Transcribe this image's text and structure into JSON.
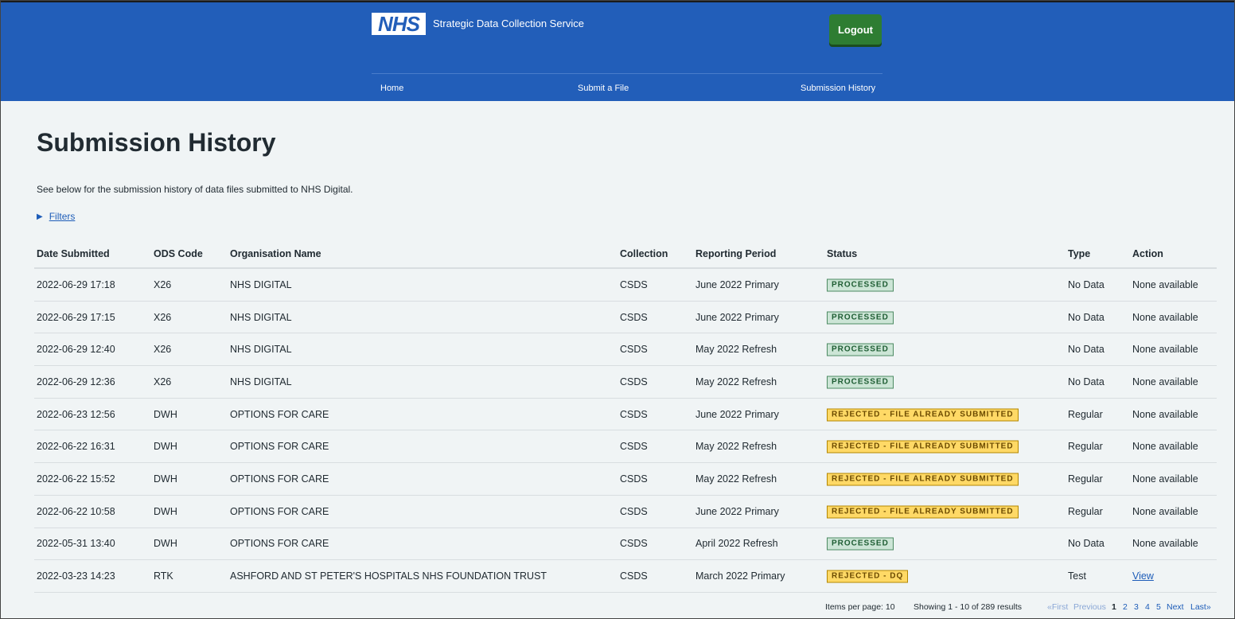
{
  "header": {
    "logo_text": "NHS",
    "service_name": "Strategic Data Collection Service",
    "logout_label": "Logout",
    "nav": [
      {
        "label": "Home"
      },
      {
        "label": "Submit a File"
      },
      {
        "label": "Submission History"
      }
    ],
    "colors": {
      "header_bg": "#225eb9",
      "logout_bg": "#2e7d32"
    }
  },
  "main": {
    "title": "Submission History",
    "intro": "See below for the submission history of data files submitted to NHS Digital.",
    "filters_label": "Filters"
  },
  "table": {
    "columns": [
      "Date Submitted",
      "ODS Code",
      "Organisation Name",
      "Collection",
      "Reporting Period",
      "Status",
      "Type",
      "Action"
    ],
    "rows": [
      {
        "date": "2022-06-29 17:18",
        "ods": "X26",
        "org": "NHS DIGITAL",
        "collection": "CSDS",
        "period": "June 2022 Primary",
        "status": "PROCESSED",
        "type": "No Data",
        "action": "None available"
      },
      {
        "date": "2022-06-29 17:15",
        "ods": "X26",
        "org": "NHS DIGITAL",
        "collection": "CSDS",
        "period": "June 2022 Primary",
        "status": "PROCESSED",
        "type": "No Data",
        "action": "None available"
      },
      {
        "date": "2022-06-29 12:40",
        "ods": "X26",
        "org": "NHS DIGITAL",
        "collection": "CSDS",
        "period": "May 2022 Refresh",
        "status": "PROCESSED",
        "type": "No Data",
        "action": "None available"
      },
      {
        "date": "2022-06-29 12:36",
        "ods": "X26",
        "org": "NHS DIGITAL",
        "collection": "CSDS",
        "period": "May 2022 Refresh",
        "status": "PROCESSED",
        "type": "No Data",
        "action": "None available"
      },
      {
        "date": "2022-06-23 12:56",
        "ods": "DWH",
        "org": "OPTIONS FOR CARE",
        "collection": "CSDS",
        "period": "June 2022 Primary",
        "status": "REJECTED - FILE ALREADY SUBMITTED",
        "type": "Regular",
        "action": "None available"
      },
      {
        "date": "2022-06-22 16:31",
        "ods": "DWH",
        "org": "OPTIONS FOR CARE",
        "collection": "CSDS",
        "period": "May 2022 Refresh",
        "status": "REJECTED - FILE ALREADY SUBMITTED",
        "type": "Regular",
        "action": "None available"
      },
      {
        "date": "2022-06-22 15:52",
        "ods": "DWH",
        "org": "OPTIONS FOR CARE",
        "collection": "CSDS",
        "period": "May 2022 Refresh",
        "status": "REJECTED - FILE ALREADY SUBMITTED",
        "type": "Regular",
        "action": "None available"
      },
      {
        "date": "2022-06-22 10:58",
        "ods": "DWH",
        "org": "OPTIONS FOR CARE",
        "collection": "CSDS",
        "period": "June 2022 Primary",
        "status": "REJECTED - FILE ALREADY SUBMITTED",
        "type": "Regular",
        "action": "None available"
      },
      {
        "date": "2022-05-31 13:40",
        "ods": "DWH",
        "org": "OPTIONS FOR CARE",
        "collection": "CSDS",
        "period": "April 2022 Refresh",
        "status": "PROCESSED",
        "type": "No Data",
        "action": "None available"
      },
      {
        "date": "2022-03-23 14:23",
        "ods": "RTK",
        "org": "ASHFORD AND ST PETER'S HOSPITALS NHS FOUNDATION TRUST",
        "collection": "CSDS",
        "period": "March 2022 Primary",
        "status": "REJECTED - DQ",
        "type": "Test",
        "action": "View"
      }
    ]
  },
  "pagination": {
    "items_per_page": "Items per page: 10",
    "showing": "Showing 1 - 10 of 289 results",
    "first": "«First",
    "previous": "Previous",
    "pages": [
      "1",
      "2",
      "3",
      "4",
      "5"
    ],
    "current": "1",
    "next": "Next",
    "last": "Last»"
  }
}
